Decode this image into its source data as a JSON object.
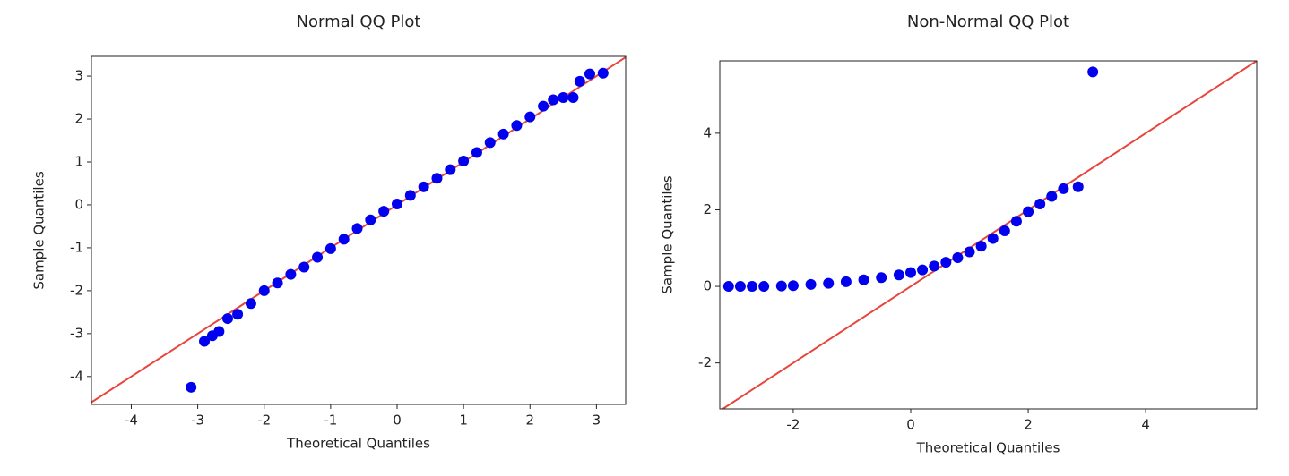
{
  "chart_data": [
    {
      "type": "scatter",
      "title": "Normal QQ Plot",
      "xlabel": "Theoretical Quantiles",
      "ylabel": "Sample Quantiles",
      "x": [
        -3.1,
        -2.9,
        -2.78,
        -2.68,
        -2.55,
        -2.4,
        -2.2,
        -2.0,
        -1.8,
        -1.6,
        -1.4,
        -1.2,
        -1.0,
        -0.8,
        -0.6,
        -0.4,
        -0.2,
        0,
        0.2,
        0.4,
        0.6,
        0.8,
        1.0,
        1.2,
        1.4,
        1.6,
        1.8,
        2.0,
        2.2,
        2.35,
        2.5,
        2.65,
        2.75,
        2.9,
        3.1
      ],
      "values": [
        -4.25,
        -3.18,
        -3.05,
        -2.95,
        -2.65,
        -2.55,
        -2.3,
        -2.0,
        -1.82,
        -1.62,
        -1.45,
        -1.22,
        -1.02,
        -0.8,
        -0.55,
        -0.35,
        -0.15,
        0.02,
        0.22,
        0.42,
        0.62,
        0.82,
        1.02,
        1.22,
        1.45,
        1.65,
        1.85,
        2.05,
        2.3,
        2.45,
        2.5,
        2.5,
        2.88,
        3.05,
        3.07
      ],
      "color": "#0000ee",
      "line": {
        "x": [
          -4.6,
          3.44
        ],
        "y": [
          -4.6,
          3.44
        ],
        "color": "#e8453c"
      },
      "xlim": [
        -4.6,
        3.44
      ],
      "ylim": [
        -4.65,
        3.46
      ],
      "xticks": [
        -4,
        -3,
        -2,
        -1,
        0,
        1,
        2,
        3
      ],
      "yticks": [
        -4,
        -3,
        -2,
        -1,
        0,
        1,
        2,
        3
      ]
    },
    {
      "type": "scatter",
      "title": "Non-Normal QQ Plot",
      "xlabel": "Theoretical Quantiles",
      "ylabel": "Sample Quantiles",
      "x": [
        -3.1,
        -2.9,
        -2.7,
        -2.5,
        -2.2,
        -2.0,
        -1.7,
        -1.4,
        -1.1,
        -0.8,
        -0.5,
        -0.2,
        0,
        0.2,
        0.4,
        0.6,
        0.8,
        1.0,
        1.2,
        1.4,
        1.6,
        1.8,
        2.0,
        2.2,
        2.4,
        2.6,
        2.85,
        3.1
      ],
      "values": [
        0,
        0,
        0,
        0,
        0.01,
        0.02,
        0.05,
        0.08,
        0.12,
        0.17,
        0.23,
        0.3,
        0.36,
        0.43,
        0.53,
        0.63,
        0.75,
        0.9,
        1.05,
        1.25,
        1.45,
        1.7,
        1.95,
        2.15,
        2.35,
        2.55,
        2.6,
        5.6
      ],
      "color": "#0000ee",
      "line": {
        "x": [
          -3.25,
          5.89
        ],
        "y": [
          -3.25,
          5.89
        ],
        "color": "#e8453c"
      },
      "xlim": [
        -3.25,
        5.89
      ],
      "ylim": [
        -3.2,
        5.89
      ],
      "xticks": [
        -2,
        0,
        2,
        4
      ],
      "yticks": [
        -2,
        0,
        2,
        4
      ]
    }
  ]
}
